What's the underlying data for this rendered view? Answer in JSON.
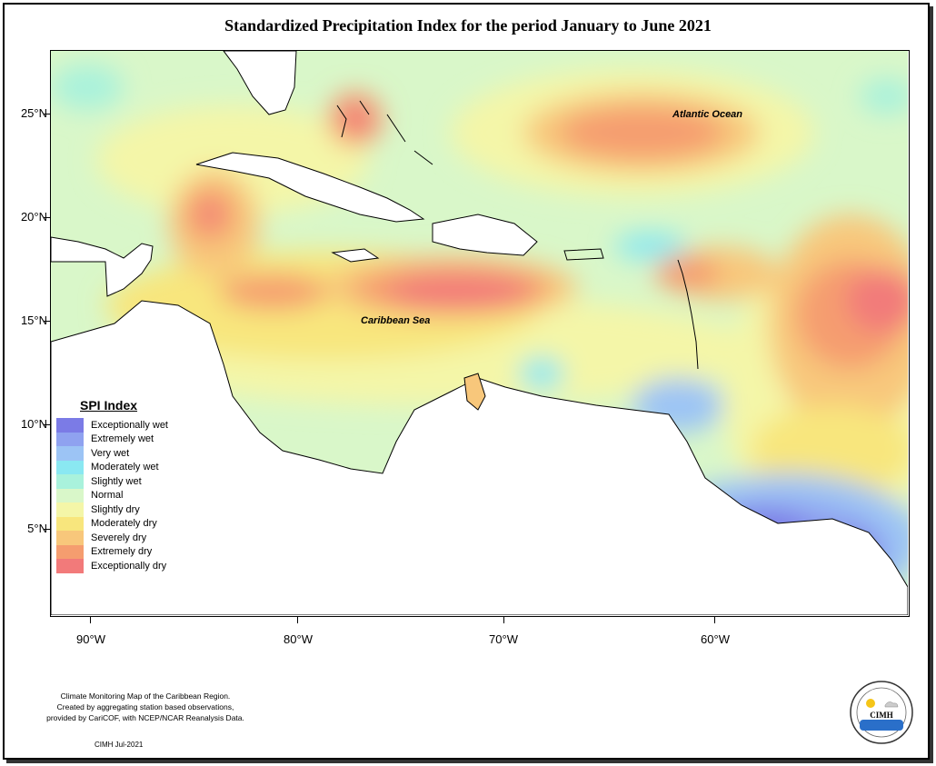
{
  "title": "Standardized Precipitation Index for the period January to June 2021",
  "axes": {
    "y_labels": [
      "25°N",
      "20°N",
      "15°N",
      "10°N",
      "5°N"
    ],
    "x_labels": [
      "90°W",
      "80°W",
      "70°W",
      "60°W"
    ]
  },
  "map_labels": {
    "atlantic": "Atlantic Ocean",
    "caribbean": "Caribbean Sea"
  },
  "legend": {
    "title": "SPI Index",
    "items": [
      {
        "label": "Exceptionally wet",
        "color": "#7b7be6"
      },
      {
        "label": "Extremely wet",
        "color": "#8fa2f0"
      },
      {
        "label": "Very wet",
        "color": "#9cc4f5"
      },
      {
        "label": "Moderately wet",
        "color": "#8ae8f2"
      },
      {
        "label": "Slightly wet",
        "color": "#a9f2dc"
      },
      {
        "label": "Normal",
        "color": "#d9f7c9"
      },
      {
        "label": "Slightly dry",
        "color": "#f4f6a8"
      },
      {
        "label": "Moderately dry",
        "color": "#f8e67d"
      },
      {
        "label": "Severely dry",
        "color": "#f8c77b"
      },
      {
        "label": "Extremely dry",
        "color": "#f59d6f"
      },
      {
        "label": "Exceptionally dry",
        "color": "#f27a7a"
      }
    ]
  },
  "footer": {
    "note_line1": "Climate Monitoring Map of the Caribbean Region.",
    "note_line2": "Created by aggregating station based observations,",
    "note_line3": "provided by CariCOF, with NCEP/NCAR Reanalysis Data.",
    "credit": "CIMH Jul-2021",
    "logo_text": "CIMH"
  }
}
